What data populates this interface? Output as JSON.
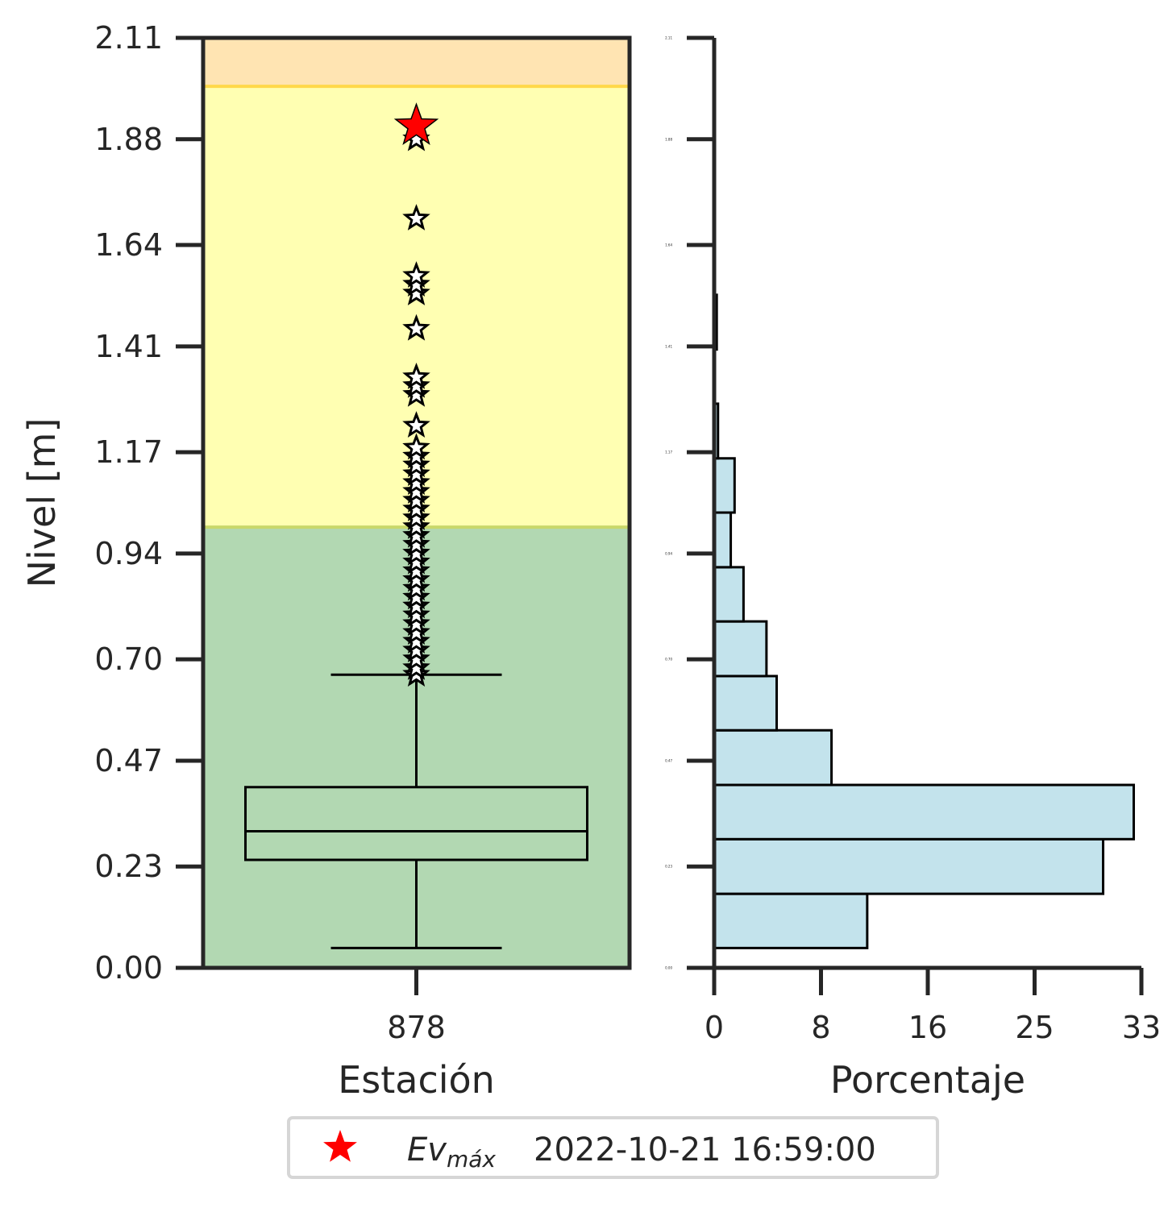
{
  "chart_data": [
    {
      "type": "box",
      "title": "",
      "xlabel": "Estación",
      "ylabel": "Nivel [m]",
      "categories": [
        "878"
      ],
      "ylim": [
        0.0,
        2.11
      ],
      "yticks": [
        "0.00",
        "0.23",
        "0.47",
        "0.70",
        "0.94",
        "1.17",
        "1.41",
        "1.64",
        "1.88",
        "2.11"
      ],
      "threshold_bands": [
        {
          "from": 0.0,
          "to": 1.0,
          "color": "#b2d8b2"
        },
        {
          "from": 1.0,
          "to": 2.0,
          "color": "#ffffb2"
        },
        {
          "from": 2.0,
          "to": 2.11,
          "color": "#ffe4b2"
        }
      ],
      "box": {
        "whisker_low": 0.045,
        "q1": 0.245,
        "median": 0.31,
        "q3": 0.41,
        "whisker_high": 0.665
      },
      "outliers": [
        0.665,
        0.68,
        0.7,
        0.72,
        0.74,
        0.76,
        0.78,
        0.8,
        0.82,
        0.84,
        0.86,
        0.88,
        0.9,
        0.92,
        0.94,
        0.96,
        0.98,
        1.0,
        1.02,
        1.04,
        1.06,
        1.08,
        1.1,
        1.12,
        1.14,
        1.16,
        1.18,
        1.23,
        1.3,
        1.32,
        1.34,
        1.45,
        1.53,
        1.55,
        1.57,
        1.7,
        1.88
      ],
      "max_event": {
        "value": 1.91,
        "color": "#ff0000"
      }
    },
    {
      "type": "bar",
      "orientation": "horizontal",
      "title": "",
      "xlabel": "Porcentaje",
      "ylabel": "",
      "xlim": [
        0,
        33.5
      ],
      "xticks": [
        "0",
        "8",
        "16",
        "25",
        "33"
      ],
      "ylim": [
        0.0,
        2.11
      ],
      "ytick_labels": [
        "0.00",
        "0.23",
        "0.47",
        "0.70",
        "0.94",
        "1.17",
        "1.41",
        "1.64",
        "1.88",
        "2.11"
      ],
      "bar_color": "#c3e3ec",
      "bins": [
        {
          "from": 0.045,
          "to": 0.168,
          "value": 12.0
        },
        {
          "from": 0.168,
          "to": 0.292,
          "value": 30.5
        },
        {
          "from": 0.292,
          "to": 0.415,
          "value": 32.9
        },
        {
          "from": 0.415,
          "to": 0.539,
          "value": 9.2
        },
        {
          "from": 0.539,
          "to": 0.662,
          "value": 4.9
        },
        {
          "from": 0.662,
          "to": 0.786,
          "value": 4.1
        },
        {
          "from": 0.786,
          "to": 0.909,
          "value": 2.3
        },
        {
          "from": 0.909,
          "to": 1.033,
          "value": 1.3
        },
        {
          "from": 1.033,
          "to": 1.156,
          "value": 1.6
        },
        {
          "from": 1.156,
          "to": 1.28,
          "value": 0.3
        },
        {
          "from": 1.28,
          "to": 1.403,
          "value": 0.0
        },
        {
          "from": 1.403,
          "to": 1.527,
          "value": 0.2
        }
      ]
    }
  ],
  "legend": {
    "placement": "bottom-center",
    "symbol_color": "#ff0000",
    "label_base": "Ev",
    "label_sub": "máx",
    "label_text": "2022-10-21 16:59:00"
  }
}
